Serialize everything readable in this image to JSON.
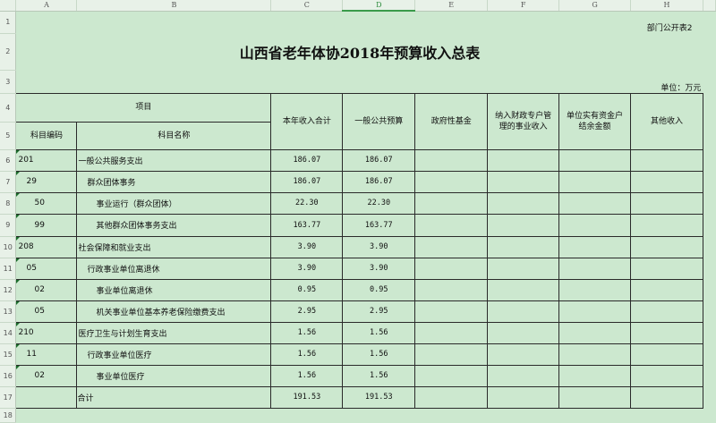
{
  "columns": [
    "A",
    "B",
    "C",
    "D",
    "E",
    "F",
    "G",
    "H"
  ],
  "selected_column": "D",
  "row_numbers": [
    "1",
    "2",
    "3",
    "4",
    "5",
    "6",
    "7",
    "8",
    "9",
    "10",
    "11",
    "12",
    "13",
    "14",
    "15",
    "16",
    "17",
    "18"
  ],
  "form_number": "部门公开表2",
  "title": "山西省老年体协2018年预算收入总表",
  "unit": "单位：万元",
  "headers": {
    "item": "项目",
    "code": "科目编码",
    "name": "科目名称",
    "total": "本年收入合计",
    "general_budget": "一般公共预算",
    "gov_fund": "政府性基金",
    "special_account": "纳入财政专户管理的事业收入",
    "balance": "单位实有资金户结余金额",
    "other": "其他收入"
  },
  "rows": [
    {
      "code": "201",
      "level": 0,
      "name": "一般公共服务支出",
      "total": "186.07",
      "general": "186.07"
    },
    {
      "code": "29",
      "level": 1,
      "name": "群众团体事务",
      "total": "186.07",
      "general": "186.07"
    },
    {
      "code": "50",
      "level": 2,
      "name": "事业运行（群众团体）",
      "total": "22.30",
      "general": "22.30"
    },
    {
      "code": "99",
      "level": 2,
      "name": "其他群众团体事务支出",
      "total": "163.77",
      "general": "163.77"
    },
    {
      "code": "208",
      "level": 0,
      "name": "社会保障和就业支出",
      "total": "3.90",
      "general": "3.90"
    },
    {
      "code": "05",
      "level": 1,
      "name": "行政事业单位离退休",
      "total": "3.90",
      "general": "3.90"
    },
    {
      "code": "02",
      "level": 2,
      "name": "事业单位离退休",
      "total": "0.95",
      "general": "0.95"
    },
    {
      "code": "05",
      "level": 2,
      "name": "机关事业单位基本养老保险缴费支出",
      "total": "2.95",
      "general": "2.95"
    },
    {
      "code": "210",
      "level": 0,
      "name": "医疗卫生与计划生育支出",
      "total": "1.56",
      "general": "1.56"
    },
    {
      "code": "11",
      "level": 1,
      "name": "行政事业单位医疗",
      "total": "1.56",
      "general": "1.56"
    },
    {
      "code": "02",
      "level": 2,
      "name": "事业单位医疗",
      "total": "1.56",
      "general": "1.56"
    }
  ],
  "total_row": {
    "label": "合计",
    "total": "191.53",
    "general": "191.53"
  }
}
